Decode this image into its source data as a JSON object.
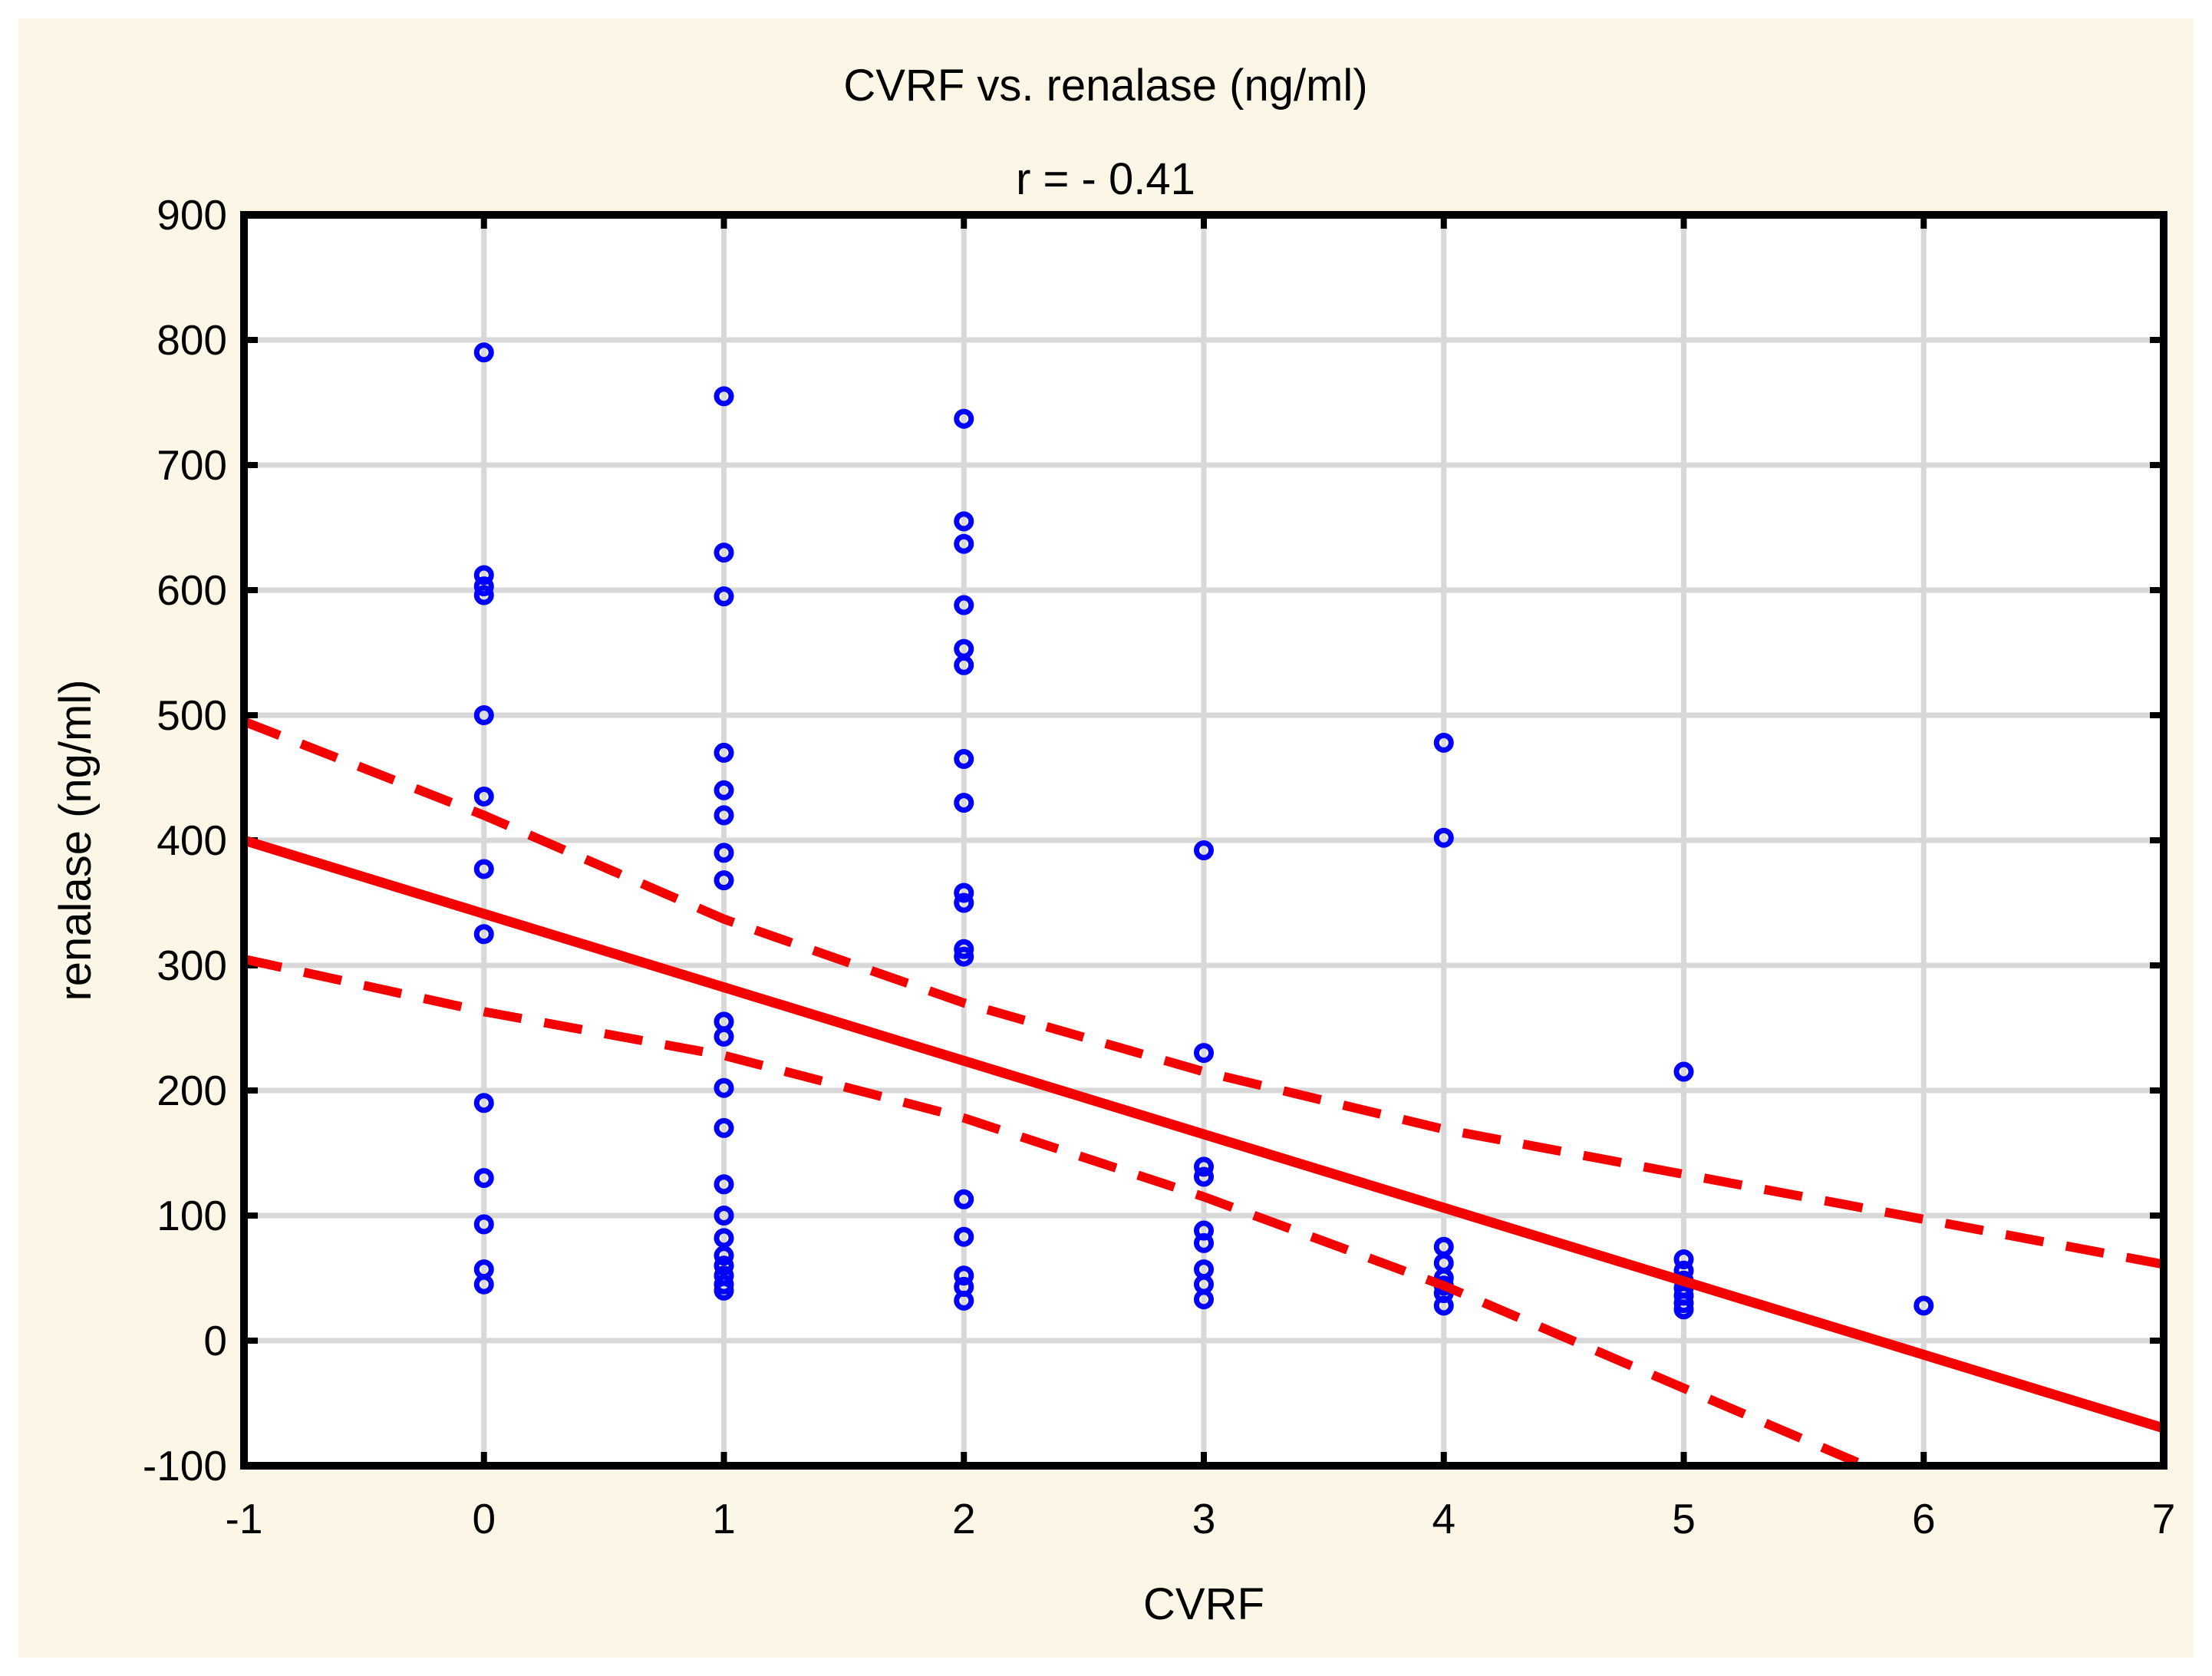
{
  "page": {
    "background": "#FFFFFF",
    "panel_background": "#FBF6E5"
  },
  "chart_data": {
    "type": "scatter",
    "title": "CVRF vs. renalase (ng/ml)",
    "subtitle": "r = - 0.41",
    "xlabel": "CVRF",
    "ylabel": "renalase (ng/ml)",
    "xlim": [
      -1,
      7
    ],
    "ylim": [
      -100,
      900
    ],
    "x_ticks": [
      -1,
      0,
      1,
      2,
      3,
      4,
      5,
      6,
      7
    ],
    "y_ticks": [
      -100,
      0,
      100,
      200,
      300,
      400,
      500,
      600,
      700,
      800,
      900
    ],
    "grid": true,
    "legend_position": "none",
    "colors": {
      "marker": "#0000FF",
      "line": "#F40000",
      "grid": "#D8D8D8",
      "frame": "#000000",
      "plot_background": "#FFFFFF",
      "panel_background": "#FBF6E5"
    },
    "marker_style": {
      "shape": "open-circle",
      "radius": 9.5,
      "stroke_width": 7
    },
    "points": [
      [
        0,
        790
      ],
      [
        0,
        612
      ],
      [
        0,
        603
      ],
      [
        0,
        596
      ],
      [
        0,
        500
      ],
      [
        0,
        435
      ],
      [
        0,
        377
      ],
      [
        0,
        325
      ],
      [
        0,
        190
      ],
      [
        0,
        130
      ],
      [
        0,
        93
      ],
      [
        0,
        57
      ],
      [
        0,
        45
      ],
      [
        1,
        755
      ],
      [
        1,
        630
      ],
      [
        1,
        595
      ],
      [
        1,
        470
      ],
      [
        1,
        440
      ],
      [
        1,
        420
      ],
      [
        1,
        390
      ],
      [
        1,
        368
      ],
      [
        1,
        255
      ],
      [
        1,
        243
      ],
      [
        1,
        202
      ],
      [
        1,
        170
      ],
      [
        1,
        125
      ],
      [
        1,
        100
      ],
      [
        1,
        82
      ],
      [
        1,
        68
      ],
      [
        1,
        60
      ],
      [
        1,
        52
      ],
      [
        1,
        45
      ],
      [
        1,
        40
      ],
      [
        2,
        737
      ],
      [
        2,
        655
      ],
      [
        2,
        637
      ],
      [
        2,
        588
      ],
      [
        2,
        553
      ],
      [
        2,
        540
      ],
      [
        2,
        465
      ],
      [
        2,
        430
      ],
      [
        2,
        358
      ],
      [
        2,
        350
      ],
      [
        2,
        313
      ],
      [
        2,
        307
      ],
      [
        2,
        113
      ],
      [
        2,
        83
      ],
      [
        2,
        52
      ],
      [
        2,
        43
      ],
      [
        2,
        32
      ],
      [
        3,
        392
      ],
      [
        3,
        230
      ],
      [
        3,
        139
      ],
      [
        3,
        131
      ],
      [
        3,
        88
      ],
      [
        3,
        78
      ],
      [
        3,
        57
      ],
      [
        3,
        45
      ],
      [
        3,
        33
      ],
      [
        4,
        478
      ],
      [
        4,
        402
      ],
      [
        4,
        75
      ],
      [
        4,
        62
      ],
      [
        4,
        50
      ],
      [
        4,
        44
      ],
      [
        4,
        38
      ],
      [
        4,
        28
      ],
      [
        5,
        215
      ],
      [
        5,
        65
      ],
      [
        5,
        56
      ],
      [
        5,
        48
      ],
      [
        5,
        42
      ],
      [
        5,
        36
      ],
      [
        5,
        30
      ],
      [
        5,
        25
      ],
      [
        6,
        28
      ]
    ],
    "regression_line": [
      [
        -1,
        400
      ],
      [
        7,
        -70
      ]
    ],
    "ci_upper": [
      [
        -1,
        495
      ],
      [
        0,
        420
      ],
      [
        1,
        337
      ],
      [
        2,
        270
      ],
      [
        3,
        215
      ],
      [
        4,
        169
      ],
      [
        5,
        133
      ],
      [
        6,
        97
      ],
      [
        7,
        61
      ]
    ],
    "ci_lower": [
      [
        -1,
        305
      ],
      [
        0,
        263
      ],
      [
        1,
        228
      ],
      [
        2,
        178
      ],
      [
        3,
        115
      ],
      [
        4,
        44
      ],
      [
        5,
        -38
      ],
      [
        6,
        -120
      ],
      [
        7,
        -201
      ]
    ]
  }
}
